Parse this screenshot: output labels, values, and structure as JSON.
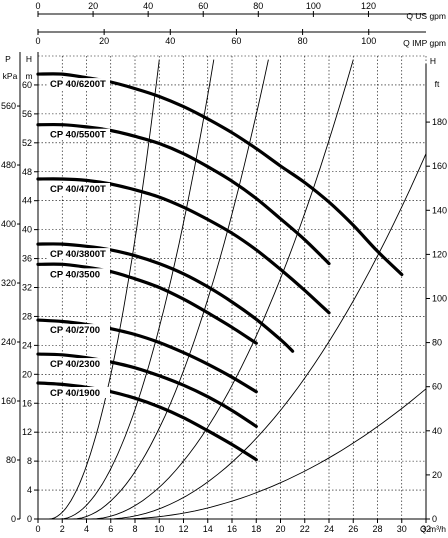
{
  "chart_data": {
    "type": "line",
    "title": "",
    "top_axes": [
      {
        "label": "Q US gpm",
        "ticks": [
          0,
          20,
          40,
          60,
          80,
          100,
          120
        ]
      },
      {
        "label": "Q IMP gpm",
        "ticks": [
          0,
          20,
          40,
          60,
          80,
          100
        ]
      }
    ],
    "left_axes": [
      {
        "label": "P kPa",
        "ticks": [
          0,
          80,
          160,
          240,
          320,
          400,
          480,
          560
        ]
      },
      {
        "label": "H m",
        "ticks": [
          0,
          4,
          8,
          12,
          16,
          20,
          24,
          28,
          32,
          36,
          40,
          44,
          48,
          52,
          56,
          60
        ]
      }
    ],
    "right_axis": {
      "label": "H ft",
      "ticks": [
        0,
        20,
        40,
        60,
        80,
        100,
        120,
        140,
        160,
        180
      ]
    },
    "x_axis": {
      "label": "Q m³/h",
      "ticks": [
        0,
        2,
        4,
        6,
        8,
        10,
        12,
        14,
        16,
        18,
        20,
        22,
        24,
        26,
        28,
        30,
        32
      ],
      "range": [
        0,
        32
      ]
    },
    "y_range": [
      0,
      64
    ],
    "grid": true,
    "series": [
      {
        "name": "CP 40/6200T",
        "x": [
          0,
          2,
          4,
          6,
          8,
          10,
          12,
          14,
          16,
          18,
          20,
          22,
          24,
          26,
          28,
          30
        ],
        "y": [
          61.5,
          61.5,
          61,
          60.4,
          59.5,
          58.4,
          57,
          55.3,
          53.4,
          51.2,
          48.8,
          46.5,
          43.8,
          40.6,
          37.0,
          33.8
        ]
      },
      {
        "name": "CP 40/5500T",
        "x": [
          0,
          2,
          4,
          6,
          8,
          10,
          12,
          14,
          16,
          18,
          20,
          22,
          24
        ],
        "y": [
          54.5,
          54.5,
          54.2,
          53.7,
          52.9,
          51.9,
          50.5,
          48.7,
          46.7,
          44.3,
          41.5,
          38.6,
          35.3
        ]
      },
      {
        "name": "CP 40/4700T",
        "x": [
          0,
          2,
          4,
          6,
          8,
          10,
          12,
          14,
          16,
          18,
          20,
          22,
          24
        ],
        "y": [
          47.0,
          47.0,
          46.8,
          46.3,
          45.5,
          44.5,
          43.1,
          41.4,
          39.5,
          37.2,
          34.5,
          31.6,
          28.5
        ]
      },
      {
        "name": "CP 40/3800T",
        "x": [
          0,
          2,
          4,
          6,
          8,
          10,
          12,
          14,
          16,
          18,
          20,
          21
        ],
        "y": [
          38.0,
          38.0,
          37.7,
          37.2,
          36.4,
          35.3,
          33.9,
          32.1,
          30.0,
          27.6,
          24.8,
          23.2
        ]
      },
      {
        "name": "CP 40/3500",
        "x": [
          0,
          2,
          4,
          6,
          8,
          10,
          12,
          14,
          16,
          18
        ],
        "y": [
          35.2,
          35.2,
          34.8,
          34.2,
          33.2,
          32.0,
          30.4,
          28.5,
          26.5,
          24.3
        ]
      },
      {
        "name": "CP 40/2700",
        "x": [
          0,
          2,
          4,
          6,
          8,
          10,
          12,
          14,
          16,
          18
        ],
        "y": [
          27.5,
          27.3,
          26.9,
          26.3,
          25.5,
          24.4,
          23.0,
          21.4,
          19.6,
          17.6
        ]
      },
      {
        "name": "CP 40/2300",
        "x": [
          0,
          2,
          4,
          6,
          8,
          10,
          12,
          14,
          16,
          18
        ],
        "y": [
          22.8,
          22.7,
          22.3,
          21.7,
          20.9,
          19.8,
          18.5,
          16.9,
          15.0,
          12.8
        ]
      },
      {
        "name": "CP 40/1900",
        "x": [
          0,
          2,
          4,
          6,
          8,
          10,
          12,
          14,
          16,
          18
        ],
        "y": [
          18.8,
          18.6,
          18.2,
          17.6,
          16.7,
          15.5,
          14.0,
          12.2,
          10.3,
          8.2
        ]
      }
    ],
    "system_curves": [
      {
        "x": [
          0.9,
          10
        ],
        "y": [
          0,
          63.5
        ]
      },
      {
        "x": [
          1.8,
          14.5
        ],
        "y": [
          0,
          63.5
        ]
      },
      {
        "x": [
          2.8,
          19
        ],
        "y": [
          0,
          63.5
        ]
      },
      {
        "x": [
          4.3,
          26
        ],
        "y": [
          0,
          63.5
        ]
      },
      {
        "x": [
          5.6,
          32
        ],
        "y": [
          0,
          50.5
        ]
      },
      {
        "x": [
          6.6,
          32
        ],
        "y": [
          0,
          18
        ]
      }
    ]
  }
}
